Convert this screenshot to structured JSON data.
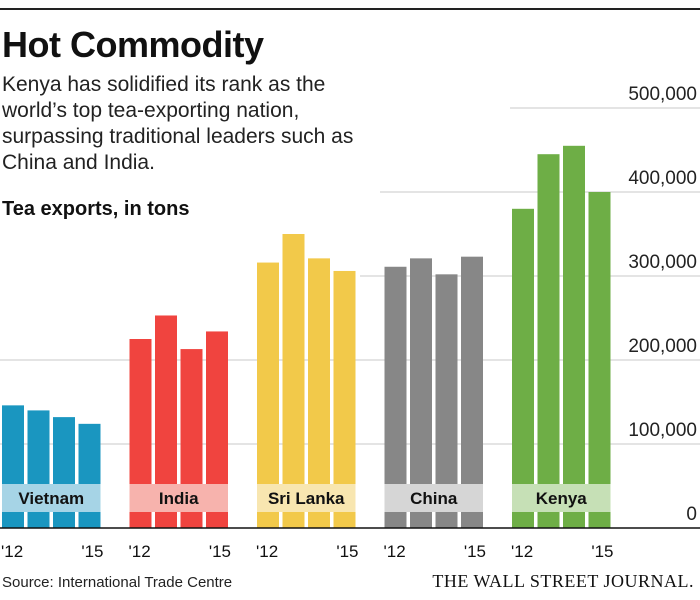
{
  "header": {
    "title": "Hot Commodity",
    "subtitle": "Kenya has solidified its rank as the world’s top tea-exporting nation, surpassing traditional leaders such as China and India.",
    "units_label": "Tea exports, in tons"
  },
  "footer": {
    "source": "Source: International Trade Centre",
    "brand": "THE WALL STREET JOURNAL."
  },
  "chart_data": {
    "type": "bar",
    "title": "Hot Commodity",
    "ylabel": "Tea exports, in tons",
    "ylim": [
      0,
      500000
    ],
    "y_ticks": [
      0,
      100000,
      200000,
      300000,
      400000,
      500000
    ],
    "y_tick_labels": [
      "0",
      "100,000",
      "200,000",
      "300,000",
      "400,000",
      "500,000"
    ],
    "grid": true,
    "x_tick_labels": [
      "'12",
      "'15"
    ],
    "series": [
      {
        "name": "Vietnam",
        "color": "#1a96c0",
        "label_bg": "#a6d4e6",
        "years": [
          2012,
          2013,
          2014,
          2015
        ],
        "values": [
          146000,
          140000,
          132000,
          124000
        ]
      },
      {
        "name": "India",
        "color": "#f0443f",
        "label_bg": "#f7b3ad",
        "years": [
          2012,
          2013,
          2014,
          2015
        ],
        "values": [
          225000,
          253000,
          213000,
          234000
        ]
      },
      {
        "name": "Sri Lanka",
        "color": "#f2c94a",
        "label_bg": "#f8e6b0",
        "years": [
          2012,
          2013,
          2014,
          2015
        ],
        "values": [
          316000,
          350000,
          321000,
          306000
        ]
      },
      {
        "name": "China",
        "color": "#878787",
        "label_bg": "#d6d6d6",
        "years": [
          2012,
          2013,
          2014,
          2015
        ],
        "values": [
          311000,
          321000,
          302000,
          323000
        ]
      },
      {
        "name": "Kenya",
        "color": "#6eae46",
        "label_bg": "#c6e0b6",
        "years": [
          2012,
          2013,
          2014,
          2015
        ],
        "values": [
          380000,
          445000,
          455000,
          400000
        ]
      }
    ]
  }
}
